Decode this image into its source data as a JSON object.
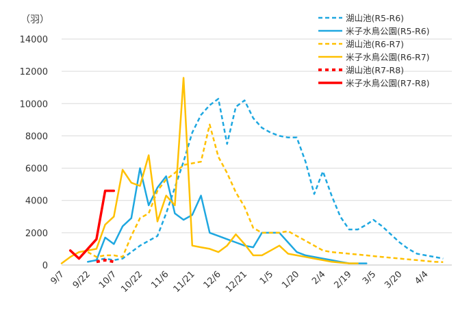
{
  "chart_data": {
    "type": "line",
    "title": "",
    "xlabel": "",
    "ylabel": "",
    "unit_label": "（羽）",
    "ylim": [
      0,
      14000
    ],
    "yticks": [
      "0",
      "2000",
      "4000",
      "6000",
      "8000",
      "10000",
      "12000",
      "14000"
    ],
    "grid": true,
    "legend_position": "top-right",
    "x_tick_labels": [
      "9/7",
      "9/22",
      "10/7",
      "10/22",
      "11/6",
      "11/21",
      "12/6",
      "12/21",
      "1/5",
      "1/20",
      "2/4",
      "2/19",
      "3/5",
      "3/20",
      "4/4"
    ],
    "series": [
      {
        "name": "湖山池(R5-R6)",
        "color": "#1EA7E0",
        "dashed": true,
        "width": 2.5,
        "dates": [
          "9/22",
          "9/27",
          "10/2",
          "10/7",
          "10/12",
          "10/17",
          "10/22",
          "10/27",
          "11/1",
          "11/6",
          "11/11",
          "11/16",
          "11/21",
          "11/26",
          "12/1",
          "12/6",
          "12/11",
          "12/16",
          "12/21",
          "12/26",
          "12/31",
          "1/5",
          "1/10",
          "1/15",
          "1/20",
          "1/25",
          "1/30",
          "2/4",
          "2/9",
          "2/14",
          "2/19",
          "2/24",
          "3/1",
          "3/5",
          "3/10",
          "3/15",
          "3/20",
          "3/25",
          "3/30",
          "4/4",
          "4/9",
          "4/14"
        ],
        "values": [
          200,
          300,
          400,
          300,
          400,
          800,
          1200,
          1500,
          1800,
          3200,
          4800,
          6400,
          8200,
          9300,
          9900,
          10300,
          7500,
          9800,
          10200,
          9100,
          8500,
          8200,
          8000,
          7900,
          7900,
          6400,
          4400,
          5800,
          4300,
          3000,
          2200,
          2200,
          2500,
          2800,
          2400,
          1900,
          1400,
          1000,
          700,
          600,
          500,
          400
        ]
      },
      {
        "name": "米子水鳥公園(R5-R6)",
        "color": "#1EA7E0",
        "dashed": false,
        "width": 2.5,
        "dates": [
          "9/22",
          "9/27",
          "10/2",
          "10/7",
          "10/12",
          "10/17",
          "10/22",
          "10/27",
          "11/1",
          "11/6",
          "11/11",
          "11/16",
          "11/21",
          "11/26",
          "12/1",
          "12/6",
          "12/11",
          "12/16",
          "12/21",
          "12/26",
          "12/31",
          "1/5",
          "1/10",
          "1/15",
          "1/20",
          "1/25",
          "1/30",
          "2/4",
          "2/9",
          "2/14",
          "2/19",
          "2/24",
          "3/1"
        ],
        "values": [
          200,
          300,
          1700,
          1300,
          2400,
          2900,
          6000,
          3700,
          4800,
          5500,
          3200,
          2800,
          3100,
          4300,
          2000,
          1800,
          1600,
          1400,
          1200,
          1100,
          2000,
          2000,
          2000,
          1400,
          800,
          600,
          500,
          400,
          300,
          200,
          100,
          100,
          100
        ]
      },
      {
        "name": "湖山池(R6-R7)",
        "color": "#FFC000",
        "dashed": true,
        "width": 2.5,
        "dates": [
          "9/22",
          "9/27",
          "10/2",
          "10/7",
          "10/12",
          "10/17",
          "10/22",
          "10/27",
          "11/1",
          "11/6",
          "11/11",
          "11/16",
          "11/21",
          "11/26",
          "12/1",
          "12/6",
          "12/11",
          "12/16",
          "12/21",
          "12/26",
          "12/31",
          "1/5",
          "1/10",
          "1/15",
          "1/20",
          "1/25",
          "1/30",
          "2/4",
          "2/9",
          "2/14",
          "2/19",
          "2/24",
          "3/1",
          "3/5",
          "3/10",
          "3/15",
          "3/20",
          "3/25",
          "3/30",
          "4/4",
          "4/9",
          "4/14"
        ],
        "values": [
          800,
          500,
          600,
          600,
          500,
          1800,
          2900,
          3200,
          4600,
          5300,
          5700,
          6200,
          6300,
          6400,
          8700,
          6700,
          5700,
          4500,
          3600,
          2300,
          2000,
          2000,
          2000,
          2100,
          1800,
          1500,
          1200,
          900,
          800,
          750,
          700,
          650,
          600,
          550,
          500,
          450,
          400,
          350,
          300,
          250,
          200,
          180
        ]
      },
      {
        "name": "米子水鳥公園(R6-R7)",
        "color": "#FFC000",
        "dashed": false,
        "width": 2.5,
        "dates": [
          "9/7",
          "9/12",
          "9/17",
          "9/22",
          "9/27",
          "10/2",
          "10/7",
          "10/12",
          "10/17",
          "10/22",
          "10/27",
          "11/1",
          "11/6",
          "11/11",
          "11/16",
          "11/21",
          "11/26",
          "12/1",
          "12/6",
          "12/11",
          "12/16",
          "12/21",
          "12/26",
          "12/31",
          "1/5",
          "1/10",
          "1/15",
          "1/20",
          "1/25",
          "1/30",
          "2/4",
          "2/9",
          "2/14",
          "2/19",
          "2/24"
        ],
        "values": [
          100,
          500,
          800,
          900,
          1000,
          2500,
          3000,
          5900,
          5100,
          4900,
          6800,
          2700,
          4300,
          3700,
          11600,
          1200,
          1100,
          1000,
          800,
          1200,
          1900,
          1300,
          600,
          600,
          900,
          1200,
          700,
          600,
          500,
          400,
          300,
          200,
          150,
          100,
          100
        ]
      },
      {
        "name": "湖山池(R7-R8)",
        "color": "#FF0000",
        "dashed": true,
        "width": 4,
        "dates": [
          "9/27",
          "10/2",
          "10/7"
        ],
        "values": [
          200,
          300,
          200
        ]
      },
      {
        "name": "米子水鳥公園(R7-R8)",
        "color": "#FF0000",
        "dashed": false,
        "width": 3.5,
        "dates": [
          "9/12",
          "9/17",
          "9/22",
          "9/27",
          "10/2",
          "10/7"
        ],
        "values": [
          900,
          400,
          1000,
          1600,
          4600,
          4600
        ]
      }
    ]
  }
}
